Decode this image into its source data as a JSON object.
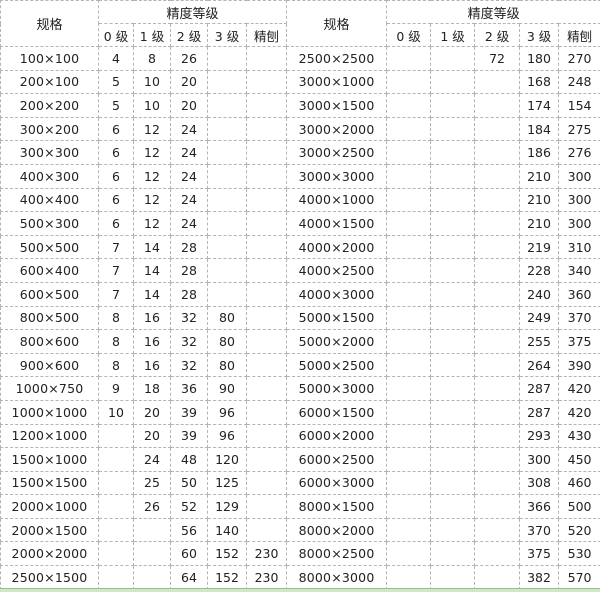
{
  "header": {
    "spec": "规格",
    "precision_group": "精度等级",
    "grades": [
      "0 级",
      "1 级",
      "2 级",
      "3 级",
      "精刨"
    ]
  },
  "left_rows": [
    [
      "100×100",
      "4",
      "8",
      "26",
      "",
      ""
    ],
    [
      "200×100",
      "5",
      "10",
      "20",
      "",
      ""
    ],
    [
      "200×200",
      "5",
      "10",
      "20",
      "",
      ""
    ],
    [
      "300×200",
      "6",
      "12",
      "24",
      "",
      ""
    ],
    [
      "300×300",
      "6",
      "12",
      "24",
      "",
      ""
    ],
    [
      "400×300",
      "6",
      "12",
      "24",
      "",
      ""
    ],
    [
      "400×400",
      "6",
      "12",
      "24",
      "",
      ""
    ],
    [
      "500×300",
      "6",
      "12",
      "24",
      "",
      ""
    ],
    [
      "500×500",
      "7",
      "14",
      "28",
      "",
      ""
    ],
    [
      "600×400",
      "7",
      "14",
      "28",
      "",
      ""
    ],
    [
      "600×500",
      "7",
      "14",
      "28",
      "",
      ""
    ],
    [
      "800×500",
      "8",
      "16",
      "32",
      "80",
      ""
    ],
    [
      "800×600",
      "8",
      "16",
      "32",
      "80",
      ""
    ],
    [
      "900×600",
      "8",
      "16",
      "32",
      "80",
      ""
    ],
    [
      "1000×750",
      "9",
      "18",
      "36",
      "90",
      ""
    ],
    [
      "1000×1000",
      "10",
      "20",
      "39",
      "96",
      ""
    ],
    [
      "1200×1000",
      "",
      "20",
      "39",
      "96",
      ""
    ],
    [
      "1500×1000",
      "",
      "24",
      "48",
      "120",
      ""
    ],
    [
      "1500×1500",
      "",
      "25",
      "50",
      "125",
      ""
    ],
    [
      "2000×1000",
      "",
      "26",
      "52",
      "129",
      ""
    ],
    [
      "2000×1500",
      "",
      "",
      "56",
      "140",
      ""
    ],
    [
      "2000×2000",
      "",
      "",
      "60",
      "152",
      "230"
    ],
    [
      "2500×1500",
      "",
      "",
      "64",
      "152",
      "230"
    ]
  ],
  "right_rows": [
    [
      "2500×2500",
      "",
      "",
      "72",
      "180",
      "270"
    ],
    [
      "3000×1000",
      "",
      "",
      "",
      "168",
      "248"
    ],
    [
      "3000×1500",
      "",
      "",
      "",
      "174",
      "154"
    ],
    [
      "3000×2000",
      "",
      "",
      "",
      "184",
      "275"
    ],
    [
      "3000×2500",
      "",
      "",
      "",
      "186",
      "276"
    ],
    [
      "3000×3000",
      "",
      "",
      "",
      "210",
      "300"
    ],
    [
      "4000×1000",
      "",
      "",
      "",
      "210",
      "300"
    ],
    [
      "4000×1500",
      "",
      "",
      "",
      "210",
      "300"
    ],
    [
      "4000×2000",
      "",
      "",
      "",
      "219",
      "310"
    ],
    [
      "4000×2500",
      "",
      "",
      "",
      "228",
      "340"
    ],
    [
      "4000×3000",
      "",
      "",
      "",
      "240",
      "360"
    ],
    [
      "5000×1500",
      "",
      "",
      "",
      "249",
      "370"
    ],
    [
      "5000×2000",
      "",
      "",
      "",
      "255",
      "375"
    ],
    [
      "5000×2500",
      "",
      "",
      "",
      "264",
      "390"
    ],
    [
      "5000×3000",
      "",
      "",
      "",
      "287",
      "420"
    ],
    [
      "6000×1500",
      "",
      "",
      "",
      "287",
      "420"
    ],
    [
      "6000×2000",
      "",
      "",
      "",
      "293",
      "430"
    ],
    [
      "6000×2500",
      "",
      "",
      "",
      "300",
      "450"
    ],
    [
      "6000×3000",
      "",
      "",
      "",
      "308",
      "460"
    ],
    [
      "8000×1500",
      "",
      "",
      "",
      "366",
      "500"
    ],
    [
      "8000×2000",
      "",
      "",
      "",
      "370",
      "520"
    ],
    [
      "8000×2500",
      "",
      "",
      "",
      "375",
      "530"
    ],
    [
      "8000×3000",
      "",
      "",
      "",
      "382",
      "570"
    ]
  ]
}
